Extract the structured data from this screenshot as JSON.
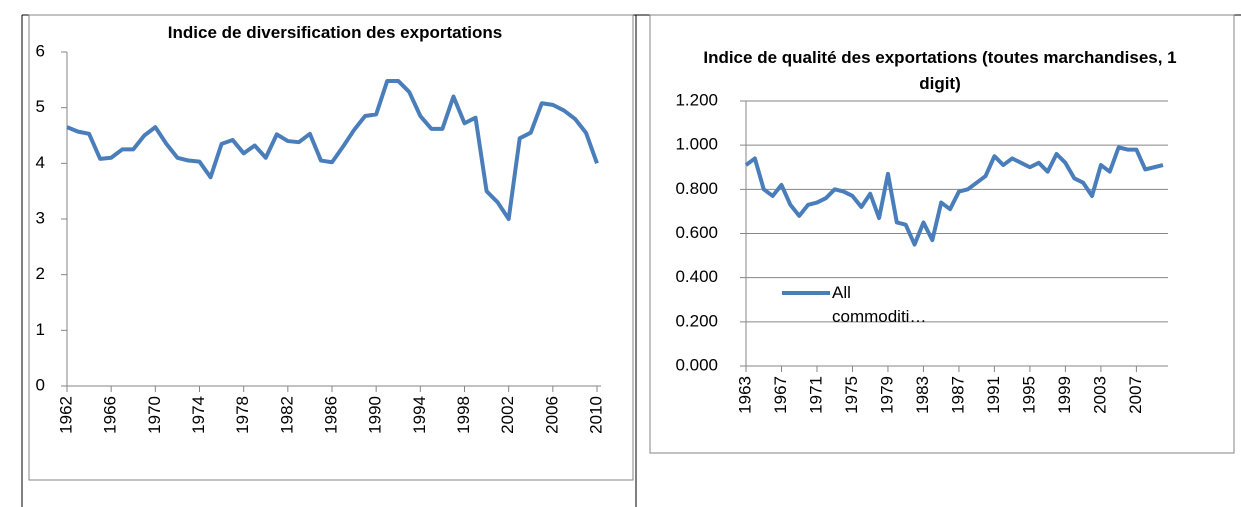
{
  "chart_data": [
    {
      "type": "line",
      "title": "Indice de diversification des exportations",
      "x": [
        1962,
        1963,
        1964,
        1965,
        1966,
        1967,
        1968,
        1969,
        1970,
        1971,
        1972,
        1973,
        1974,
        1975,
        1976,
        1977,
        1978,
        1979,
        1980,
        1981,
        1982,
        1983,
        1984,
        1985,
        1986,
        1987,
        1988,
        1989,
        1990,
        1991,
        1992,
        1993,
        1994,
        1995,
        1996,
        1997,
        1998,
        1999,
        2000,
        2001,
        2002,
        2003,
        2004,
        2005,
        2006,
        2007,
        2008,
        2009,
        2010
      ],
      "series": [
        {
          "color": "#4a7ebb",
          "values": [
            4.65,
            4.57,
            4.53,
            4.08,
            4.1,
            4.25,
            4.25,
            4.5,
            4.65,
            4.35,
            4.1,
            4.05,
            4.03,
            3.75,
            4.35,
            4.42,
            4.18,
            4.32,
            4.1,
            4.52,
            4.4,
            4.38,
            4.53,
            4.05,
            4.02,
            4.3,
            4.6,
            4.85,
            4.88,
            5.48,
            5.48,
            5.28,
            4.85,
            4.62,
            4.62,
            5.2,
            4.72,
            4.82,
            3.5,
            3.3,
            3.0,
            4.45,
            4.55,
            5.08,
            5.05,
            4.95,
            4.8,
            4.55,
            4.0
          ]
        }
      ],
      "xlim": [
        1962,
        2010
      ],
      "xticks": [
        1962,
        1966,
        1970,
        1974,
        1978,
        1982,
        1986,
        1990,
        1994,
        1998,
        2002,
        2006,
        2010
      ],
      "ylim": [
        0,
        6
      ],
      "yticks": [
        0,
        1,
        2,
        3,
        4,
        5,
        6
      ],
      "grid": false
    },
    {
      "type": "line",
      "title": "Indice de qualité des exportations (toutes marchandises, 1 digit)",
      "x": [
        1963,
        1964,
        1965,
        1966,
        1967,
        1968,
        1969,
        1970,
        1971,
        1972,
        1973,
        1974,
        1975,
        1976,
        1977,
        1978,
        1979,
        1980,
        1981,
        1982,
        1983,
        1984,
        1985,
        1986,
        1987,
        1988,
        1989,
        1990,
        1991,
        1992,
        1993,
        1994,
        1995,
        1996,
        1997,
        1998,
        1999,
        2000,
        2001,
        2002,
        2003,
        2004,
        2005,
        2006,
        2007,
        2008,
        2009,
        2010
      ],
      "series": [
        {
          "name": "All commoditi…",
          "color": "#4a7ebb",
          "values": [
            0.91,
            0.94,
            0.8,
            0.77,
            0.82,
            0.73,
            0.68,
            0.73,
            0.74,
            0.76,
            0.8,
            0.79,
            0.77,
            0.72,
            0.78,
            0.67,
            0.87,
            0.65,
            0.64,
            0.55,
            0.65,
            0.57,
            0.74,
            0.71,
            0.79,
            0.8,
            0.83,
            0.86,
            0.95,
            0.91,
            0.94,
            0.92,
            0.9,
            0.92,
            0.88,
            0.96,
            0.92,
            0.85,
            0.83,
            0.77,
            0.91,
            0.88,
            0.99,
            0.98,
            0.98,
            0.89,
            0.9,
            0.91
          ]
        }
      ],
      "xlim": [
        1963,
        2010
      ],
      "xticks": [
        1963,
        1967,
        1971,
        1975,
        1979,
        1983,
        1987,
        1991,
        1995,
        1999,
        2003,
        2007
      ],
      "ylim": [
        0,
        1.2
      ],
      "yticks": [
        {
          "value": 0,
          "label": "0.000"
        },
        {
          "value": 0.2,
          "label": "0.200"
        },
        {
          "value": 0.4,
          "label": "0.400"
        },
        {
          "value": 0.6,
          "label": "0.600"
        },
        {
          "value": 0.8,
          "label": "0.800"
        },
        {
          "value": 1,
          "label": "1.000"
        },
        {
          "value": 1.2,
          "label": "1.200"
        }
      ],
      "grid": true,
      "legend": "left"
    }
  ]
}
